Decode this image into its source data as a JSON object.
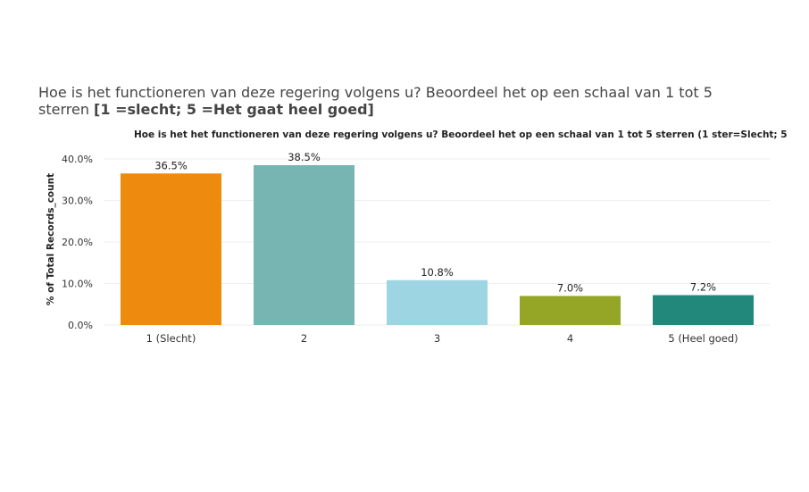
{
  "title_line1": "Hoe is het functioneren van deze regering volgens u? Beoordeel het op een schaal van 1 tot 5",
  "title_line2_prefix": "sterren ",
  "title_line2_bold": "[1 =slecht; 5 =Het gaat heel goed]",
  "chart_data": {
    "type": "bar",
    "title": "Hoe is het het functioneren van deze regering volgens u? Beoordeel het op een schaal van 1 tot 5 sterren  (1 ster=Slecht; 5",
    "xlabel": "",
    "ylabel": "% of Total Records_count",
    "categories": [
      "1 (Slecht)",
      "2",
      "3",
      "4",
      "5 (Heel goed)"
    ],
    "values": [
      36.5,
      38.5,
      10.8,
      7.0,
      7.2
    ],
    "data_labels": [
      "36.5%",
      "38.5%",
      "10.8%",
      "7.0%",
      "7.2%"
    ],
    "colors": [
      "#EE8A0E",
      "#76B5B1",
      "#9DD6E2",
      "#95A526",
      "#23887C"
    ],
    "ylim": [
      0,
      40
    ],
    "yticks": [
      0,
      10,
      20,
      30,
      40
    ],
    "ytick_labels": [
      "0.0%",
      "10.0%",
      "20.0%",
      "30.0%",
      "40.0%"
    ],
    "grid": true,
    "legend": false
  }
}
